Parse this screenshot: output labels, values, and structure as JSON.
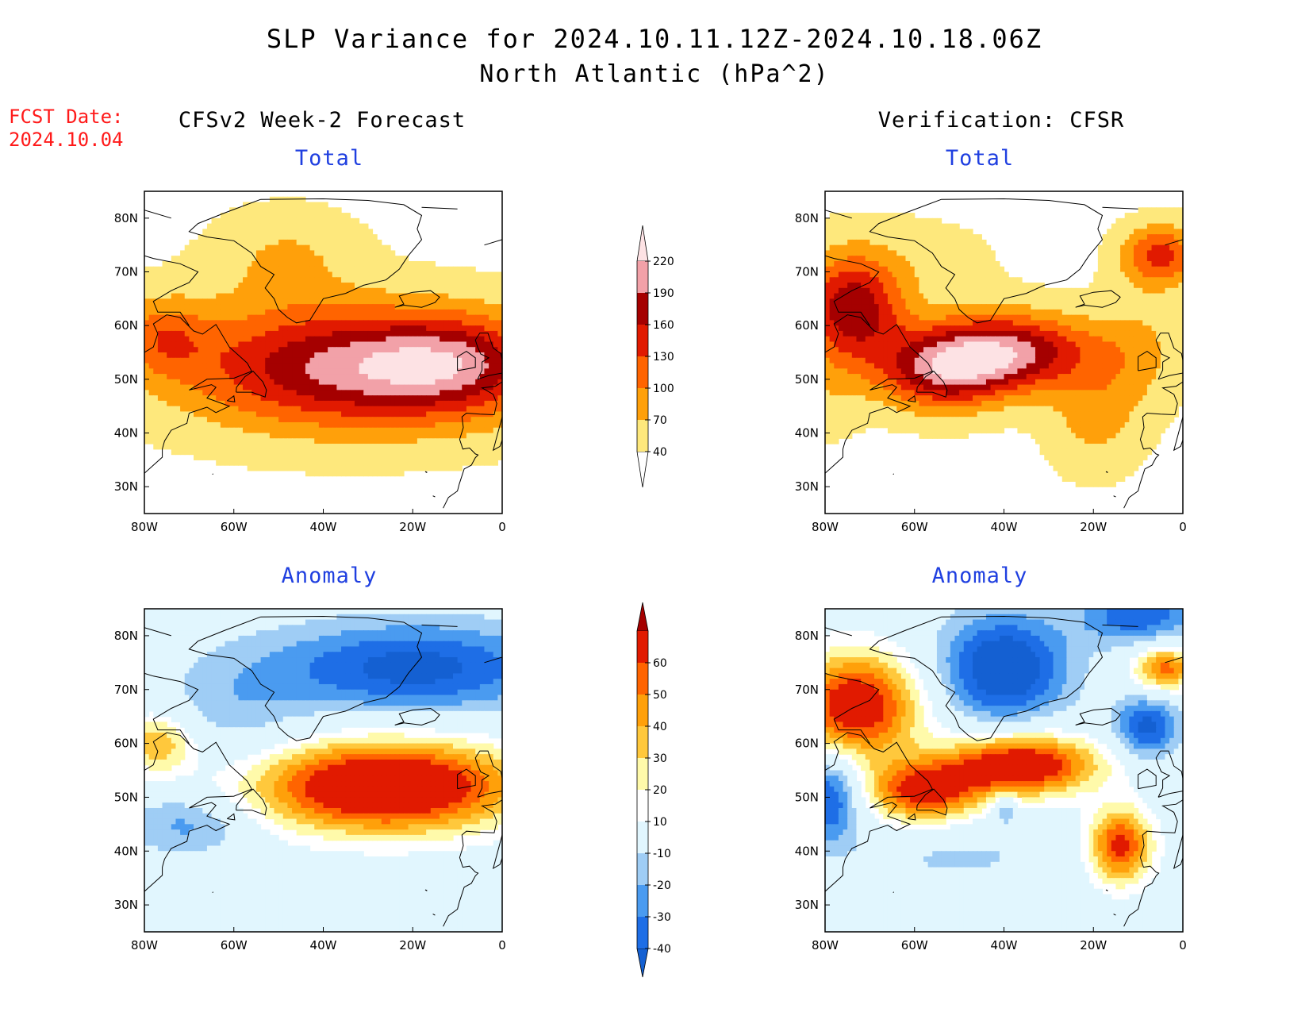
{
  "title": {
    "line1": "SLP Variance for 2024.10.11.12Z-2024.10.18.06Z",
    "line2": "North Atlantic (hPa^2)"
  },
  "forecast_label": {
    "line1": "FCST Date:",
    "line2": "2024.10.04"
  },
  "columns": {
    "left": "CFSv2 Week-2 Forecast",
    "right": "Verification: CFSR"
  },
  "chart_data": [
    {
      "type": "heatmap",
      "column": "left",
      "subtitle": "Total",
      "x_ticks": [
        "80W",
        "60W",
        "40W",
        "20W",
        "0"
      ],
      "y_ticks": [
        "30N",
        "40N",
        "50N",
        "60N",
        "70N",
        "80N"
      ],
      "xlim": [
        -80,
        0
      ],
      "ylim": [
        25,
        85
      ],
      "colorbar": "total",
      "field": [
        {
          "lon": -32,
          "lat": 52,
          "value": 195,
          "sx": 26,
          "sy": 8
        },
        {
          "lon": -10,
          "lat": 53,
          "value": 110,
          "sx": 14,
          "sy": 6
        },
        {
          "lon": -76,
          "lat": 58,
          "value": 95,
          "sx": 7,
          "sy": 5
        },
        {
          "lon": -48,
          "lat": 73,
          "value": 70,
          "sx": 11,
          "sy": 6
        },
        {
          "lon": -60,
          "lat": 57,
          "value": 45,
          "sx": 18,
          "sy": 10
        }
      ]
    },
    {
      "type": "heatmap",
      "column": "right",
      "subtitle": "Total",
      "x_ticks": [
        "80W",
        "60W",
        "40W",
        "20W",
        "0"
      ],
      "y_ticks": [
        "30N",
        "40N",
        "50N",
        "60N",
        "70N",
        "80N"
      ],
      "xlim": [
        -80,
        0
      ],
      "ylim": [
        25,
        85
      ],
      "colorbar": "total",
      "field": [
        {
          "lon": -40,
          "lat": 55,
          "value": 200,
          "sx": 14,
          "sy": 5
        },
        {
          "lon": -54,
          "lat": 51,
          "value": 150,
          "sx": 10,
          "sy": 5
        },
        {
          "lon": -74,
          "lat": 63,
          "value": 180,
          "sx": 8,
          "sy": 7
        },
        {
          "lon": -20,
          "lat": 43,
          "value": 80,
          "sx": 7,
          "sy": 7
        },
        {
          "lon": -5,
          "lat": 73,
          "value": 140,
          "sx": 6,
          "sy": 4
        },
        {
          "lon": -10,
          "lat": 55,
          "value": 70,
          "sx": 7,
          "sy": 8
        },
        {
          "lon": -60,
          "lat": 72,
          "value": 50,
          "sx": 14,
          "sy": 6
        },
        {
          "lon": -80,
          "lat": 47,
          "value": 55,
          "sx": 6,
          "sy": 6
        }
      ]
    },
    {
      "type": "heatmap",
      "column": "left",
      "subtitle": "Anomaly",
      "x_ticks": [
        "80W",
        "60W",
        "40W",
        "20W",
        "0"
      ],
      "y_ticks": [
        "30N",
        "40N",
        "50N",
        "60N",
        "70N",
        "80N"
      ],
      "xlim": [
        -80,
        0
      ],
      "ylim": [
        25,
        85
      ],
      "colorbar": "anomaly",
      "field": [
        {
          "lon": -26,
          "lat": 52,
          "value": 90,
          "sx": 21,
          "sy": 6
        },
        {
          "lon": -77,
          "lat": 60,
          "value": 40,
          "sx": 6,
          "sy": 4
        },
        {
          "lon": -20,
          "lat": 74,
          "value": -45,
          "sx": 23,
          "sy": 6
        },
        {
          "lon": -70,
          "lat": 45,
          "value": -25,
          "sx": 10,
          "sy": 4
        },
        {
          "lon": -60,
          "lat": 65,
          "value": -15,
          "sx": 12,
          "sy": 8
        }
      ]
    },
    {
      "type": "heatmap",
      "column": "right",
      "subtitle": "Anomaly",
      "x_ticks": [
        "80W",
        "60W",
        "40W",
        "20W",
        "0"
      ],
      "y_ticks": [
        "30N",
        "40N",
        "50N",
        "60N",
        "70N",
        "80N"
      ],
      "xlim": [
        -80,
        0
      ],
      "ylim": [
        25,
        85
      ],
      "colorbar": "anomaly",
      "field": [
        {
          "lon": -73,
          "lat": 67,
          "value": 75,
          "sx": 10,
          "sy": 7
        },
        {
          "lon": -36,
          "lat": 56,
          "value": 80,
          "sx": 12,
          "sy": 4
        },
        {
          "lon": -58,
          "lat": 51,
          "value": 65,
          "sx": 9,
          "sy": 4
        },
        {
          "lon": -14,
          "lat": 41,
          "value": 65,
          "sx": 5,
          "sy": 5
        },
        {
          "lon": -4,
          "lat": 74,
          "value": 55,
          "sx": 5,
          "sy": 3
        },
        {
          "lon": -40,
          "lat": 74,
          "value": -55,
          "sx": 10,
          "sy": 7
        },
        {
          "lon": -8,
          "lat": 63,
          "value": -45,
          "sx": 5,
          "sy": 4
        },
        {
          "lon": -79,
          "lat": 50,
          "value": -45,
          "sx": 5,
          "sy": 6
        },
        {
          "lon": -10,
          "lat": 84,
          "value": -40,
          "sx": 9,
          "sy": 4
        },
        {
          "lon": -50,
          "lat": 39,
          "value": -12,
          "sx": 16,
          "sy": 4
        },
        {
          "lon": -40,
          "lat": 48,
          "value": -30,
          "sx": 2,
          "sy": 2
        }
      ]
    }
  ],
  "colorbars": {
    "total": {
      "levels": [
        40,
        70,
        100,
        130,
        160,
        190,
        220
      ],
      "labels": [
        "40",
        "70",
        "100",
        "130",
        "160",
        "190",
        "220"
      ],
      "colors": [
        "#ffffff",
        "#fee87c",
        "#ffa00a",
        "#ff6400",
        "#e11a00",
        "#a50000",
        "#f2a1a8",
        "#fde2e4"
      ]
    },
    "anomaly": {
      "levels": [
        -40,
        -30,
        -20,
        -10,
        10,
        20,
        30,
        40,
        50,
        60
      ],
      "labels": [
        "-40",
        "-30",
        "-20",
        "-10",
        "10",
        "20",
        "30",
        "40",
        "50",
        "60"
      ],
      "colors": [
        "#1460d2",
        "#1e6ee6",
        "#4a9bf0",
        "#9fcdf5",
        "#e1f6fe",
        "#ffffff",
        "#fffaaa",
        "#ffc83c",
        "#ffa00a",
        "#ff6400",
        "#e11a00",
        "#a50000"
      ]
    }
  }
}
